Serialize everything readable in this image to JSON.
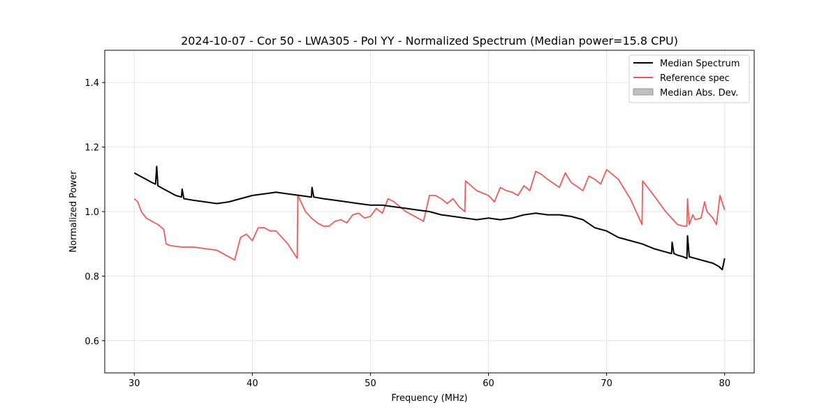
{
  "chart_data": {
    "type": "line",
    "title": "2024-10-07 - Cor 50 - LWA305 - Pol YY - Normalized Spectrum (Median power=15.8 CPU)",
    "xlabel": "Frequency (MHz)",
    "ylabel": "Normalized Power",
    "xlim": [
      27.5,
      82.5
    ],
    "ylim": [
      0.5,
      1.5
    ],
    "xticks": [
      30,
      40,
      50,
      60,
      70,
      80
    ],
    "yticks": [
      0.6,
      0.8,
      1.0,
      1.2,
      1.4
    ],
    "xtick_labels": [
      "30",
      "40",
      "50",
      "60",
      "70",
      "80"
    ],
    "ytick_labels": [
      "0.6",
      "0.8",
      "1.0",
      "1.2",
      "1.4"
    ],
    "grid": true,
    "legend_position": "top-right",
    "legend": [
      "Median Spectrum",
      "Reference spec",
      "Median Abs. Dev."
    ],
    "colors": {
      "median": "#000000",
      "reference": "#f15a5a",
      "mad": "#bfbfbf"
    },
    "series": [
      {
        "name": "Median Spectrum",
        "x": [
          30,
          30.5,
          31,
          31.5,
          31.8,
          31.9,
          32,
          32.5,
          33,
          33.5,
          34,
          34.05,
          34.2,
          35,
          36,
          37,
          38,
          39,
          40,
          41,
          42,
          43,
          44,
          45,
          45.05,
          45.2,
          46,
          47,
          48,
          49,
          50,
          51,
          52,
          53,
          54,
          55,
          56,
          57,
          58,
          59,
          60,
          61,
          62,
          63,
          64,
          65,
          66,
          67,
          68,
          69,
          70,
          71,
          72,
          73,
          74,
          75,
          75.5,
          75.55,
          75.7,
          76,
          76.5,
          76.8,
          76.85,
          77,
          77.5,
          78,
          78.5,
          79,
          79.5,
          79.8,
          80
        ],
        "y": [
          1.12,
          1.11,
          1.1,
          1.09,
          1.085,
          1.14,
          1.08,
          1.07,
          1.06,
          1.05,
          1.045,
          1.07,
          1.04,
          1.035,
          1.03,
          1.025,
          1.03,
          1.04,
          1.05,
          1.055,
          1.06,
          1.055,
          1.05,
          1.045,
          1.075,
          1.045,
          1.04,
          1.035,
          1.03,
          1.025,
          1.02,
          1.02,
          1.015,
          1.01,
          1.005,
          1.0,
          0.99,
          0.985,
          0.98,
          0.975,
          0.98,
          0.975,
          0.98,
          0.99,
          0.995,
          0.99,
          0.99,
          0.985,
          0.975,
          0.95,
          0.94,
          0.92,
          0.91,
          0.9,
          0.885,
          0.875,
          0.87,
          0.905,
          0.87,
          0.865,
          0.86,
          0.855,
          0.925,
          0.86,
          0.855,
          0.85,
          0.845,
          0.84,
          0.83,
          0.82,
          0.855
        ]
      },
      {
        "name": "Reference spec",
        "x": [
          30,
          30.3,
          30.6,
          31,
          31.5,
          32,
          32.5,
          32.7,
          33,
          34,
          35,
          36,
          37,
          37.5,
          38,
          38.5,
          39,
          39.5,
          40,
          40.5,
          41,
          41.5,
          42,
          43,
          43.8,
          43.85,
          44.5,
          45,
          45.5,
          46,
          46.5,
          47,
          47.5,
          48,
          48.5,
          49,
          49.5,
          50,
          50.5,
          51,
          51.5,
          52,
          52.5,
          53,
          53.5,
          54,
          54.5,
          55,
          55.5,
          56,
          56.5,
          57,
          57.5,
          58,
          58.05,
          59,
          60,
          60.5,
          61,
          61.5,
          62,
          62.5,
          63,
          63.5,
          64,
          64.5,
          65,
          66,
          66.5,
          67,
          68,
          68.5,
          69,
          69.5,
          70,
          71,
          72,
          73,
          73.05,
          74,
          75,
          76,
          76.5,
          76.8,
          76.85,
          77,
          77.3,
          77.5,
          78,
          78.3,
          78.5,
          79,
          79.3,
          79.6,
          80
        ],
        "y": [
          1.04,
          1.03,
          1.0,
          0.98,
          0.97,
          0.96,
          0.945,
          0.9,
          0.895,
          0.89,
          0.89,
          0.885,
          0.88,
          0.87,
          0.86,
          0.85,
          0.92,
          0.93,
          0.91,
          0.95,
          0.95,
          0.94,
          0.94,
          0.9,
          0.855,
          1.05,
          1.0,
          0.98,
          0.965,
          0.955,
          0.955,
          0.97,
          0.975,
          0.965,
          0.99,
          0.995,
          0.98,
          0.985,
          1.01,
          0.995,
          1.04,
          1.03,
          1.015,
          1.0,
          0.99,
          0.98,
          0.97,
          1.05,
          1.05,
          1.04,
          1.025,
          1.04,
          1.015,
          1.0,
          1.095,
          1.065,
          1.05,
          1.03,
          1.075,
          1.065,
          1.06,
          1.05,
          1.08,
          1.065,
          1.125,
          1.115,
          1.1,
          1.075,
          1.12,
          1.09,
          1.065,
          1.11,
          1.1,
          1.085,
          1.13,
          1.1,
          1.04,
          0.96,
          1.095,
          1.05,
          1.0,
          0.96,
          0.955,
          0.955,
          1.04,
          0.96,
          0.99,
          0.975,
          0.98,
          1.03,
          1.0,
          0.98,
          0.96,
          1.05,
          1.005
        ]
      }
    ]
  }
}
